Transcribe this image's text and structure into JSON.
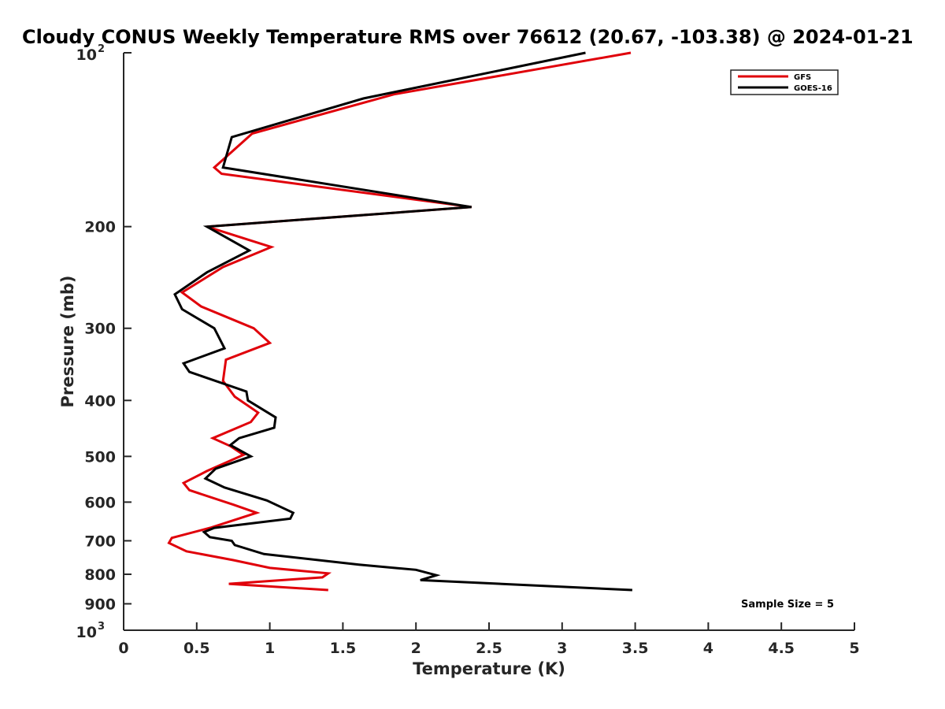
{
  "chart_data": {
    "type": "line",
    "title": "Cloudy CONUS Weekly Temperature RMS over 76612 (20.67, -103.38) @ 2024-01-21",
    "xlabel": "Temperature (K)",
    "ylabel": "Pressure (mb)",
    "xlim": [
      0,
      5
    ],
    "ylim": [
      100,
      1000
    ],
    "y_scale": "log",
    "y_reversed": true,
    "grid": false,
    "legend_position": "top-right",
    "x_ticks": [
      "0",
      "0.5",
      "1",
      "1.5",
      "2",
      "2.5",
      "3",
      "3.5",
      "4",
      "4.5",
      "5"
    ],
    "x_tick_values": [
      0,
      0.5,
      1,
      1.5,
      2,
      2.5,
      3,
      3.5,
      4,
      4.5,
      5
    ],
    "y_ticks": [
      {
        "value": 100,
        "base": "10",
        "exp": "2"
      },
      {
        "value": 200,
        "label": "200"
      },
      {
        "value": 300,
        "label": "300"
      },
      {
        "value": 400,
        "label": "400"
      },
      {
        "value": 500,
        "label": "500"
      },
      {
        "value": 600,
        "label": "600"
      },
      {
        "value": 700,
        "label": "700"
      },
      {
        "value": 800,
        "label": "800"
      },
      {
        "value": 900,
        "label": "900"
      },
      {
        "value": 1000,
        "base": "10",
        "exp": "3"
      }
    ],
    "annotation": "Sample Size = 5",
    "series": [
      {
        "name": "GFS",
        "color": "#e0000a",
        "points": [
          [
            3.47,
            100
          ],
          [
            1.85,
            118
          ],
          [
            0.88,
            138
          ],
          [
            0.62,
            158
          ],
          [
            0.67,
            162
          ],
          [
            2.38,
            185
          ],
          [
            0.57,
            200
          ],
          [
            1.01,
            217
          ],
          [
            0.68,
            235
          ],
          [
            0.4,
            260
          ],
          [
            0.53,
            275
          ],
          [
            0.89,
            300
          ],
          [
            1.0,
            318
          ],
          [
            0.7,
            340
          ],
          [
            0.68,
            370
          ],
          [
            0.76,
            394
          ],
          [
            0.92,
            420
          ],
          [
            0.87,
            436
          ],
          [
            0.61,
            465
          ],
          [
            0.73,
            480
          ],
          [
            0.82,
            497
          ],
          [
            0.57,
            530
          ],
          [
            0.41,
            556
          ],
          [
            0.45,
            572
          ],
          [
            0.75,
            606
          ],
          [
            0.91,
            626
          ],
          [
            0.6,
            664
          ],
          [
            0.33,
            692
          ],
          [
            0.31,
            706
          ],
          [
            0.43,
            730
          ],
          [
            0.75,
            756
          ],
          [
            1.0,
            780
          ],
          [
            1.4,
            797
          ],
          [
            1.36,
            810
          ],
          [
            0.72,
            831
          ],
          [
            1.4,
            852
          ]
        ]
      },
      {
        "name": "GOES-16",
        "color": "#000000",
        "points": [
          [
            3.16,
            100
          ],
          [
            1.64,
            120
          ],
          [
            0.74,
            140
          ],
          [
            0.68,
            158
          ],
          [
            2.38,
            185
          ],
          [
            0.57,
            200
          ],
          [
            0.86,
            220
          ],
          [
            0.57,
            240
          ],
          [
            0.35,
            262
          ],
          [
            0.4,
            278
          ],
          [
            0.62,
            300
          ],
          [
            0.69,
            325
          ],
          [
            0.41,
            345
          ],
          [
            0.45,
            357
          ],
          [
            0.84,
            386
          ],
          [
            0.85,
            400
          ],
          [
            1.04,
            428
          ],
          [
            1.03,
            446
          ],
          [
            0.79,
            465
          ],
          [
            0.73,
            478
          ],
          [
            0.87,
            500
          ],
          [
            0.63,
            525
          ],
          [
            0.56,
            546
          ],
          [
            0.69,
            566
          ],
          [
            0.98,
            596
          ],
          [
            1.16,
            626
          ],
          [
            1.14,
            641
          ],
          [
            0.62,
            665
          ],
          [
            0.55,
            676
          ],
          [
            0.59,
            690
          ],
          [
            0.74,
            700
          ],
          [
            0.76,
            712
          ],
          [
            0.96,
            738
          ],
          [
            1.61,
            770
          ],
          [
            2.0,
            786
          ],
          [
            2.14,
            803
          ],
          [
            2.03,
            819
          ],
          [
            3.48,
            852
          ]
        ]
      }
    ]
  }
}
